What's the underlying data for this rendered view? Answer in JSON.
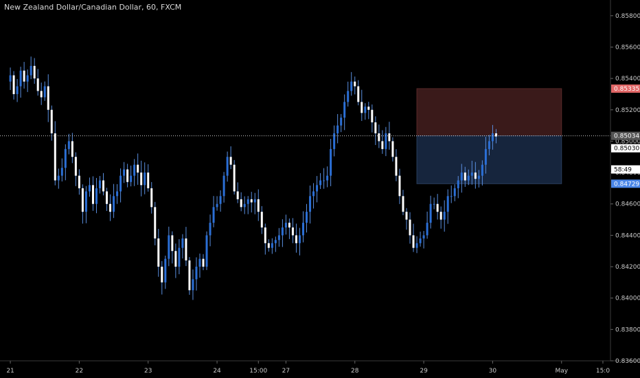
{
  "header": {
    "title": "New Zealand Dollar/Canadian Dollar, 60, FXCM"
  },
  "colors": {
    "background": "#000000",
    "candle_up": "#2b6fd6",
    "candle_down": "#ffffff",
    "wick": "#5a8fe0",
    "stop_zone": "#3a1a1a",
    "target_zone": "#16253d",
    "stop_tag": "#e06666",
    "target_tag": "#4a86e8",
    "axis_line": "#3a3a3a"
  },
  "chart_data": {
    "type": "candlestick",
    "ylim": [
      0.836,
      0.859
    ],
    "y_ticks": [
      "0.85800",
      "0.85600",
      "0.85400",
      "0.85200",
      "0.85000",
      "0.84800",
      "0.84600",
      "0.84400",
      "0.84200",
      "0.84000",
      "0.83800",
      "0.83600"
    ],
    "y_tick_values": [
      0.858,
      0.856,
      0.854,
      0.852,
      0.85,
      0.848,
      0.846,
      0.844,
      0.842,
      0.84,
      0.838,
      0.836
    ],
    "x_ticks": [
      "21",
      "22",
      "23",
      "24",
      "15:00",
      "27",
      "28",
      "29",
      "30",
      "May",
      "15:0"
    ],
    "x_tick_positions": [
      0,
      20,
      40,
      60,
      72,
      80,
      100,
      120,
      140,
      160,
      172
    ],
    "x_range": [
      -3,
      174
    ],
    "price_tags": {
      "stop": "0.85335",
      "last": "0.85034",
      "current": "0.85030",
      "countdown": "58:49",
      "target": "0.84729"
    },
    "price_tag_values": {
      "stop": 0.85335,
      "last": 0.85034,
      "current": 0.8503,
      "target": 0.84729
    },
    "position_box": {
      "start": 118,
      "end": 160,
      "entry": 0.85034,
      "stop": 0.85335,
      "target": 0.84729
    },
    "closes": [
      0.8542,
      0.853,
      0.8535,
      0.8545,
      0.8538,
      0.8542,
      0.8548,
      0.854,
      0.8532,
      0.8528,
      0.8535,
      0.852,
      0.8505,
      0.8475,
      0.8478,
      0.8483,
      0.8495,
      0.85,
      0.849,
      0.8478,
      0.847,
      0.8455,
      0.8468,
      0.8472,
      0.846,
      0.847,
      0.8475,
      0.8468,
      0.846,
      0.8455,
      0.8465,
      0.8468,
      0.8478,
      0.8482,
      0.8474,
      0.8478,
      0.8485,
      0.848,
      0.8472,
      0.848,
      0.847,
      0.8458,
      0.8438,
      0.842,
      0.841,
      0.8425,
      0.844,
      0.843,
      0.842,
      0.8432,
      0.8438,
      0.8424,
      0.8405,
      0.8412,
      0.842,
      0.8425,
      0.842,
      0.844,
      0.8448,
      0.8458,
      0.846,
      0.8465,
      0.8478,
      0.849,
      0.8485,
      0.8468,
      0.8463,
      0.8458,
      0.846,
      0.8463,
      0.8461,
      0.8463,
      0.8455,
      0.8445,
      0.8435,
      0.8432,
      0.8435,
      0.8437,
      0.844,
      0.8445,
      0.8448,
      0.8445,
      0.844,
      0.8435,
      0.844,
      0.8448,
      0.8455,
      0.8465,
      0.8468,
      0.8472,
      0.8475,
      0.8475,
      0.8478,
      0.8495,
      0.8505,
      0.851,
      0.8515,
      0.8525,
      0.8532,
      0.8538,
      0.8535,
      0.8525,
      0.8518,
      0.8522,
      0.852,
      0.8512,
      0.8505,
      0.85,
      0.8495,
      0.8505,
      0.85,
      0.849,
      0.8478,
      0.8465,
      0.8455,
      0.845,
      0.844,
      0.8432,
      0.8435,
      0.8438,
      0.844,
      0.8448,
      0.846,
      0.846,
      0.8455,
      0.845,
      0.8455,
      0.8465,
      0.8465,
      0.847,
      0.8475,
      0.848,
      0.8475,
      0.8478,
      0.848,
      0.8476,
      0.8478,
      0.8485,
      0.8495,
      0.85,
      0.8505,
      0.8503
    ]
  }
}
